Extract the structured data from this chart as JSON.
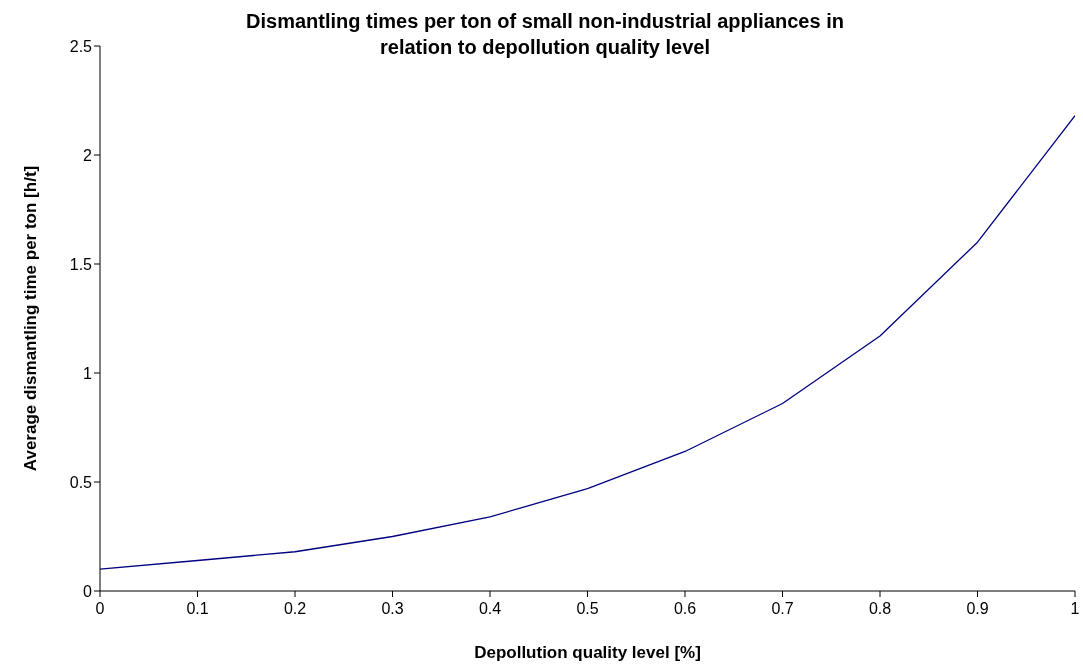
{
  "chart_data": {
    "type": "line",
    "title": "Dismantling times per ton of small non-industrial appliances in relation to depollution quality level",
    "xlabel": "Depollution quality level [%]",
    "ylabel": "Average dismantling time per ton [h/t]",
    "x": [
      0,
      0.1,
      0.2,
      0.3,
      0.4,
      0.5,
      0.6,
      0.7,
      0.8,
      0.9,
      1
    ],
    "series": [
      {
        "color": "#000080",
        "values": [
          0.1,
          0.14,
          0.18,
          0.25,
          0.34,
          0.47,
          0.64,
          0.86,
          1.17,
          1.6,
          2.18
        ]
      }
    ],
    "xlim": [
      0,
      1
    ],
    "xticks": [
      0,
      0.1,
      0.2,
      0.3,
      0.4,
      0.5,
      0.6,
      0.7,
      0.8,
      0.9,
      1
    ],
    "ylim": [
      0,
      2.5
    ],
    "yticks": [
      0,
      0.5,
      1,
      1.5,
      2,
      2.5
    ],
    "grid": false,
    "legend": false,
    "marker": "none",
    "line_style": "solid"
  }
}
